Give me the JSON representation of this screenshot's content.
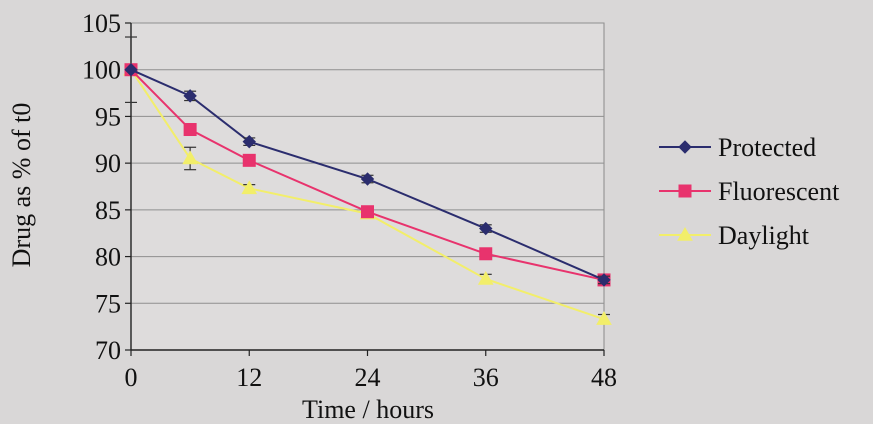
{
  "chart_data": {
    "type": "line",
    "title": "",
    "xlabel": "Time / hours",
    "ylabel": "Drug as % of t0",
    "x": [
      0,
      6,
      12,
      24,
      36,
      48
    ],
    "xticks": [
      "0",
      "12",
      "24",
      "36",
      "48"
    ],
    "xlim": [
      0,
      48
    ],
    "ylim": [
      70,
      105
    ],
    "yticks": [
      "70",
      "75",
      "80",
      "85",
      "90",
      "95",
      "100",
      "105"
    ],
    "grid": "horizontal",
    "legend_position": "right",
    "series": [
      {
        "name": "Protected",
        "color": "#2b2d6e",
        "marker": "diamond",
        "values": [
          100,
          97.2,
          92.3,
          88.3,
          83.0,
          77.5
        ],
        "errors": [
          3.5,
          0.5,
          0.4,
          0.4,
          0.4,
          0.4
        ]
      },
      {
        "name": "Fluorescent",
        "color": "#e8336d",
        "marker": "square",
        "values": [
          100,
          93.6,
          90.3,
          84.8,
          80.3,
          77.5
        ],
        "errors": [
          0.5,
          0.4,
          0.4,
          0.4,
          0.4,
          0.4
        ]
      },
      {
        "name": "Daylight",
        "color": "#f2ee6a",
        "marker": "triangle",
        "values": [
          100,
          90.5,
          87.3,
          84.6,
          77.6,
          73.3
        ],
        "errors": [
          0.4,
          1.2,
          0.4,
          0.4,
          0.5,
          0.5
        ]
      }
    ]
  }
}
